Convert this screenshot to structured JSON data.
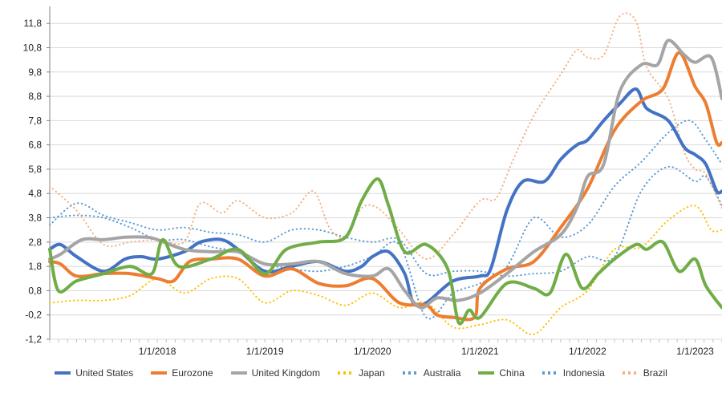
{
  "chart_data": {
    "type": "line",
    "title": "",
    "xlabel": "",
    "ylabel": "",
    "ylim": [
      -1.2,
      12.5
    ],
    "y_ticks": [
      "-1,2",
      "-0,2",
      "0,8",
      "1,8",
      "2,8",
      "3,8",
      "4,8",
      "5,8",
      "6,8",
      "7,8",
      "8,8",
      "9,8",
      "10,8",
      "11,8"
    ],
    "x_ticks": [
      {
        "label": "1/1/2018",
        "x": 2018.0
      },
      {
        "label": "1/1/2019",
        "x": 2019.0
      },
      {
        "label": "1/1/2020",
        "x": 2020.0
      },
      {
        "label": "1/1/2021",
        "x": 2021.0
      },
      {
        "label": "1/1/2022",
        "x": 2022.0
      },
      {
        "label": "1/1/2023",
        "x": 2023.0
      }
    ],
    "xlim": [
      2017.0,
      2023.25
    ],
    "grid": "horizontal",
    "legend_position": "bottom",
    "series": [
      {
        "name": "United States",
        "color": "#4472c4",
        "style": "solid",
        "width": 4,
        "points": [
          [
            2017.0,
            2.5
          ],
          [
            2017.1,
            2.7
          ],
          [
            2017.25,
            2.2
          ],
          [
            2017.5,
            1.6
          ],
          [
            2017.7,
            2.1
          ],
          [
            2017.85,
            2.2
          ],
          [
            2018.0,
            2.1
          ],
          [
            2018.25,
            2.4
          ],
          [
            2018.4,
            2.8
          ],
          [
            2018.6,
            2.9
          ],
          [
            2018.75,
            2.5
          ],
          [
            2019.0,
            1.6
          ],
          [
            2019.25,
            1.8
          ],
          [
            2019.5,
            2.0
          ],
          [
            2019.75,
            1.6
          ],
          [
            2019.9,
            1.8
          ],
          [
            2020.0,
            2.2
          ],
          [
            2020.15,
            2.4
          ],
          [
            2020.3,
            1.5
          ],
          [
            2020.38,
            0.3
          ],
          [
            2020.5,
            0.3
          ],
          [
            2020.75,
            1.2
          ],
          [
            2021.0,
            1.4
          ],
          [
            2021.1,
            1.7
          ],
          [
            2021.25,
            4.1
          ],
          [
            2021.4,
            5.3
          ],
          [
            2021.6,
            5.3
          ],
          [
            2021.75,
            6.2
          ],
          [
            2021.9,
            6.8
          ],
          [
            2022.0,
            7.0
          ],
          [
            2022.15,
            7.8
          ],
          [
            2022.3,
            8.5
          ],
          [
            2022.45,
            9.1
          ],
          [
            2022.55,
            8.3
          ],
          [
            2022.75,
            7.8
          ],
          [
            2022.9,
            6.7
          ],
          [
            2023.0,
            6.4
          ],
          [
            2023.1,
            6.0
          ],
          [
            2023.2,
            4.9
          ],
          [
            2023.25,
            4.9
          ]
        ]
      },
      {
        "name": "Eurozone",
        "color": "#ed7d31",
        "style": "solid",
        "width": 4,
        "points": [
          [
            2017.0,
            2.0
          ],
          [
            2017.1,
            1.9
          ],
          [
            2017.25,
            1.4
          ],
          [
            2017.5,
            1.5
          ],
          [
            2017.75,
            1.5
          ],
          [
            2018.0,
            1.3
          ],
          [
            2018.15,
            1.2
          ],
          [
            2018.3,
            2.0
          ],
          [
            2018.5,
            2.1
          ],
          [
            2018.75,
            2.1
          ],
          [
            2019.0,
            1.4
          ],
          [
            2019.25,
            1.7
          ],
          [
            2019.5,
            1.1
          ],
          [
            2019.75,
            1.0
          ],
          [
            2020.0,
            1.3
          ],
          [
            2020.25,
            0.3
          ],
          [
            2020.5,
            0.2
          ],
          [
            2020.6,
            -0.2
          ],
          [
            2020.75,
            -0.3
          ],
          [
            2020.95,
            -0.3
          ],
          [
            2021.0,
            0.9
          ],
          [
            2021.25,
            1.7
          ],
          [
            2021.5,
            2.0
          ],
          [
            2021.75,
            3.4
          ],
          [
            2022.0,
            5.0
          ],
          [
            2022.25,
            7.4
          ],
          [
            2022.5,
            8.6
          ],
          [
            2022.7,
            9.1
          ],
          [
            2022.85,
            10.6
          ],
          [
            2023.0,
            9.2
          ],
          [
            2023.1,
            8.5
          ],
          [
            2023.2,
            6.9
          ],
          [
            2023.25,
            6.9
          ]
        ]
      },
      {
        "name": "United Kingdom",
        "color": "#a5a5a5",
        "style": "solid",
        "width": 4,
        "points": [
          [
            2017.0,
            2.1
          ],
          [
            2017.1,
            2.3
          ],
          [
            2017.3,
            2.9
          ],
          [
            2017.5,
            2.9
          ],
          [
            2017.7,
            3.0
          ],
          [
            2017.9,
            3.0
          ],
          [
            2018.0,
            2.9
          ],
          [
            2018.25,
            2.5
          ],
          [
            2018.5,
            2.4
          ],
          [
            2018.75,
            2.4
          ],
          [
            2019.0,
            1.9
          ],
          [
            2019.25,
            1.9
          ],
          [
            2019.5,
            2.0
          ],
          [
            2019.75,
            1.5
          ],
          [
            2020.0,
            1.4
          ],
          [
            2020.15,
            1.7
          ],
          [
            2020.3,
            0.8
          ],
          [
            2020.45,
            0.1
          ],
          [
            2020.6,
            0.5
          ],
          [
            2020.8,
            0.4
          ],
          [
            2021.0,
            0.7
          ],
          [
            2021.25,
            1.5
          ],
          [
            2021.5,
            2.4
          ],
          [
            2021.75,
            3.1
          ],
          [
            2021.9,
            4.2
          ],
          [
            2022.0,
            5.5
          ],
          [
            2022.15,
            6.0
          ],
          [
            2022.3,
            9.0
          ],
          [
            2022.5,
            10.1
          ],
          [
            2022.65,
            10.1
          ],
          [
            2022.75,
            11.1
          ],
          [
            2022.9,
            10.5
          ],
          [
            2023.0,
            10.2
          ],
          [
            2023.15,
            10.4
          ],
          [
            2023.25,
            8.7
          ]
        ]
      },
      {
        "name": "Japan",
        "color": "#ffc000",
        "style": "dotted",
        "width": 2,
        "points": [
          [
            2017.0,
            0.3
          ],
          [
            2017.25,
            0.4
          ],
          [
            2017.5,
            0.4
          ],
          [
            2017.75,
            0.6
          ],
          [
            2018.0,
            1.3
          ],
          [
            2018.25,
            0.7
          ],
          [
            2018.5,
            1.3
          ],
          [
            2018.75,
            1.3
          ],
          [
            2019.0,
            0.3
          ],
          [
            2019.25,
            0.8
          ],
          [
            2019.5,
            0.6
          ],
          [
            2019.75,
            0.2
          ],
          [
            2020.0,
            0.7
          ],
          [
            2020.25,
            0.1
          ],
          [
            2020.5,
            0.3
          ],
          [
            2020.75,
            -0.7
          ],
          [
            2021.0,
            -0.6
          ],
          [
            2021.25,
            -0.4
          ],
          [
            2021.5,
            -1.0
          ],
          [
            2021.75,
            0.1
          ],
          [
            2022.0,
            0.8
          ],
          [
            2022.25,
            2.5
          ],
          [
            2022.5,
            2.6
          ],
          [
            2022.75,
            3.7
          ],
          [
            2023.0,
            4.3
          ],
          [
            2023.15,
            3.3
          ],
          [
            2023.25,
            3.3
          ]
        ]
      },
      {
        "name": "Australia",
        "color": "#5b9bd5",
        "style": "dotted",
        "width": 2,
        "points": [
          [
            2017.0,
            3.8
          ],
          [
            2017.25,
            3.9
          ],
          [
            2017.5,
            3.8
          ],
          [
            2017.75,
            3.4
          ],
          [
            2018.0,
            2.9
          ],
          [
            2018.25,
            2.9
          ],
          [
            2018.5,
            2.6
          ],
          [
            2018.75,
            2.4
          ],
          [
            2019.0,
            1.9
          ],
          [
            2019.25,
            1.7
          ],
          [
            2019.5,
            1.6
          ],
          [
            2019.75,
            1.8
          ],
          [
            2020.0,
            2.2
          ],
          [
            2020.25,
            2.7
          ],
          [
            2020.5,
            -0.3
          ],
          [
            2020.75,
            0.7
          ],
          [
            2021.0,
            1.1
          ],
          [
            2021.25,
            1.8
          ],
          [
            2021.5,
            3.8
          ],
          [
            2021.75,
            3.0
          ],
          [
            2022.0,
            3.5
          ],
          [
            2022.25,
            5.1
          ],
          [
            2022.5,
            6.1
          ],
          [
            2022.75,
            7.3
          ],
          [
            2022.95,
            7.8
          ],
          [
            2023.1,
            7.0
          ],
          [
            2023.25,
            6.0
          ]
        ]
      },
      {
        "name": "China",
        "color": "#70ad47",
        "style": "solid",
        "width": 4,
        "points": [
          [
            2017.0,
            2.5
          ],
          [
            2017.08,
            0.8
          ],
          [
            2017.25,
            1.2
          ],
          [
            2017.5,
            1.5
          ],
          [
            2017.75,
            1.8
          ],
          [
            2017.95,
            1.5
          ],
          [
            2018.05,
            2.9
          ],
          [
            2018.2,
            1.8
          ],
          [
            2018.5,
            2.1
          ],
          [
            2018.75,
            2.5
          ],
          [
            2019.0,
            1.5
          ],
          [
            2019.2,
            2.5
          ],
          [
            2019.5,
            2.8
          ],
          [
            2019.75,
            3.0
          ],
          [
            2019.9,
            4.5
          ],
          [
            2020.05,
            5.4
          ],
          [
            2020.15,
            4.3
          ],
          [
            2020.3,
            2.4
          ],
          [
            2020.5,
            2.7
          ],
          [
            2020.7,
            1.7
          ],
          [
            2020.8,
            -0.5
          ],
          [
            2020.9,
            0.0
          ],
          [
            2021.0,
            -0.3
          ],
          [
            2021.25,
            1.1
          ],
          [
            2021.5,
            0.9
          ],
          [
            2021.65,
            0.7
          ],
          [
            2021.8,
            2.3
          ],
          [
            2021.95,
            0.9
          ],
          [
            2022.1,
            1.5
          ],
          [
            2022.25,
            2.1
          ],
          [
            2022.45,
            2.7
          ],
          [
            2022.55,
            2.5
          ],
          [
            2022.7,
            2.8
          ],
          [
            2022.85,
            1.6
          ],
          [
            2023.0,
            2.1
          ],
          [
            2023.1,
            1.0
          ],
          [
            2023.25,
            0.1
          ]
        ]
      },
      {
        "name": "Indonesia",
        "color": "#5b9bd5",
        "style": "dotted",
        "width": 2,
        "points": [
          [
            2017.0,
            3.5
          ],
          [
            2017.25,
            4.4
          ],
          [
            2017.5,
            3.9
          ],
          [
            2017.75,
            3.6
          ],
          [
            2018.0,
            3.3
          ],
          [
            2018.25,
            3.4
          ],
          [
            2018.5,
            3.2
          ],
          [
            2018.75,
            3.1
          ],
          [
            2019.0,
            2.8
          ],
          [
            2019.25,
            3.3
          ],
          [
            2019.5,
            3.3
          ],
          [
            2019.75,
            3.0
          ],
          [
            2020.0,
            2.8
          ],
          [
            2020.25,
            2.9
          ],
          [
            2020.5,
            1.5
          ],
          [
            2020.75,
            1.6
          ],
          [
            2021.0,
            1.6
          ],
          [
            2021.25,
            1.4
          ],
          [
            2021.5,
            1.5
          ],
          [
            2021.75,
            1.6
          ],
          [
            2022.0,
            2.2
          ],
          [
            2022.25,
            2.2
          ],
          [
            2022.5,
            4.9
          ],
          [
            2022.75,
            5.9
          ],
          [
            2023.0,
            5.3
          ],
          [
            2023.1,
            5.5
          ],
          [
            2023.25,
            4.3
          ]
        ]
      },
      {
        "name": "Brazil",
        "color": "#f4b183",
        "style": "dotted",
        "width": 2,
        "points": [
          [
            2017.0,
            5.1
          ],
          [
            2017.25,
            4.1
          ],
          [
            2017.5,
            2.7
          ],
          [
            2017.75,
            2.8
          ],
          [
            2018.0,
            2.9
          ],
          [
            2018.25,
            2.8
          ],
          [
            2018.4,
            4.4
          ],
          [
            2018.6,
            4.0
          ],
          [
            2018.75,
            4.5
          ],
          [
            2019.0,
            3.8
          ],
          [
            2019.25,
            4.0
          ],
          [
            2019.45,
            4.9
          ],
          [
            2019.6,
            3.4
          ],
          [
            2019.75,
            3.0
          ],
          [
            2019.9,
            4.2
          ],
          [
            2020.05,
            4.2
          ],
          [
            2020.25,
            3.3
          ],
          [
            2020.5,
            2.1
          ],
          [
            2020.75,
            3.1
          ],
          [
            2021.0,
            4.5
          ],
          [
            2021.15,
            4.6
          ],
          [
            2021.3,
            6.1
          ],
          [
            2021.5,
            8.0
          ],
          [
            2021.75,
            9.7
          ],
          [
            2021.9,
            10.7
          ],
          [
            2022.0,
            10.4
          ],
          [
            2022.15,
            10.5
          ],
          [
            2022.3,
            12.1
          ],
          [
            2022.45,
            11.9
          ],
          [
            2022.55,
            10.0
          ],
          [
            2022.75,
            8.7
          ],
          [
            2022.9,
            6.5
          ],
          [
            2023.0,
            5.8
          ],
          [
            2023.1,
            5.6
          ],
          [
            2023.25,
            4.2
          ]
        ]
      }
    ]
  }
}
